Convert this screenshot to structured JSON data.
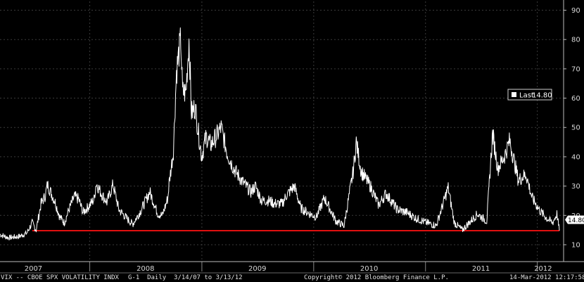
{
  "chart_data": {
    "type": "line",
    "title": "",
    "xlabel": "",
    "ylabel": "",
    "ylim": [
      4,
      93
    ],
    "xlim": [
      "2007-03-14",
      "2012-03-13"
    ],
    "grid": true,
    "y_ticks": [
      10,
      20,
      30,
      40,
      50,
      60,
      70,
      80,
      90
    ],
    "x_ticks": [
      "2007",
      "2008",
      "2009",
      "2010",
      "2011",
      "2012"
    ],
    "x_tick_dates": [
      "2007-07-01",
      "2008-07-01",
      "2009-07-01",
      "2010-07-01",
      "2011-07-01",
      "2012-01-20"
    ],
    "series": [
      {
        "name": "",
        "color": "#ffffff",
        "points": [
          [
            "2007-03-14",
            13.5
          ],
          [
            "2007-04-10",
            12.4
          ],
          [
            "2007-05-15",
            12.8
          ],
          [
            "2007-06-10",
            14.0
          ],
          [
            "2007-06-27",
            17.5
          ],
          [
            "2007-07-10",
            15.0
          ],
          [
            "2007-07-26",
            24.0
          ],
          [
            "2007-08-08",
            26.5
          ],
          [
            "2007-08-16",
            30.5
          ],
          [
            "2007-09-10",
            24.5
          ],
          [
            "2007-09-25",
            19.5
          ],
          [
            "2007-10-10",
            17.5
          ],
          [
            "2007-10-25",
            22.0
          ],
          [
            "2007-11-12",
            26.5
          ],
          [
            "2007-11-26",
            25.5
          ],
          [
            "2007-12-10",
            21.0
          ],
          [
            "2007-12-28",
            23.0
          ],
          [
            "2008-01-15",
            25.5
          ],
          [
            "2008-01-22",
            31.0
          ],
          [
            "2008-02-10",
            27.0
          ],
          [
            "2008-02-26",
            24.5
          ],
          [
            "2008-03-17",
            30.5
          ],
          [
            "2008-04-05",
            22.0
          ],
          [
            "2008-05-05",
            18.5
          ],
          [
            "2008-05-20",
            17.0
          ],
          [
            "2008-06-15",
            21.5
          ],
          [
            "2008-07-15",
            28.0
          ],
          [
            "2008-08-10",
            20.5
          ],
          [
            "2008-08-25",
            20.0
          ],
          [
            "2008-09-12",
            26.0
          ],
          [
            "2008-09-16",
            31.0
          ],
          [
            "2008-09-30",
            42.0
          ],
          [
            "2008-10-10",
            69.0
          ],
          [
            "2008-10-24",
            80.0
          ],
          [
            "2008-10-30",
            62.0
          ],
          [
            "2008-11-10",
            62.0
          ],
          [
            "2008-11-20",
            80.0
          ],
          [
            "2008-11-28",
            55.0
          ],
          [
            "2008-12-10",
            57.0
          ],
          [
            "2008-12-31",
            40.0
          ],
          [
            "2009-01-15",
            47.0
          ],
          [
            "2009-01-30",
            44.0
          ],
          [
            "2009-02-20",
            47.5
          ],
          [
            "2009-03-05",
            50.0
          ],
          [
            "2009-03-25",
            41.0
          ],
          [
            "2009-04-15",
            36.0
          ],
          [
            "2009-05-10",
            32.0
          ],
          [
            "2009-06-10",
            28.0
          ],
          [
            "2009-06-25",
            30.0
          ],
          [
            "2009-07-15",
            25.0
          ],
          [
            "2009-08-10",
            25.0
          ],
          [
            "2009-08-25",
            24.0
          ],
          [
            "2009-09-20",
            24.0
          ],
          [
            "2009-10-05",
            27.0
          ],
          [
            "2009-10-30",
            30.0
          ],
          [
            "2009-11-20",
            22.5
          ],
          [
            "2009-12-20",
            20.5
          ],
          [
            "2010-01-10",
            19.5
          ],
          [
            "2010-02-05",
            26.0
          ],
          [
            "2010-03-15",
            18.0
          ],
          [
            "2010-04-10",
            16.5
          ],
          [
            "2010-05-10",
            35.0
          ],
          [
            "2010-05-20",
            45.0
          ],
          [
            "2010-06-05",
            35.0
          ],
          [
            "2010-07-05",
            30.0
          ],
          [
            "2010-08-01",
            23.5
          ],
          [
            "2010-08-25",
            27.5
          ],
          [
            "2010-10-01",
            22.0
          ],
          [
            "2010-11-01",
            21.0
          ],
          [
            "2010-12-01",
            19.0
          ],
          [
            "2011-01-05",
            17.5
          ],
          [
            "2011-02-05",
            16.5
          ],
          [
            "2011-03-16",
            29.5
          ],
          [
            "2011-04-05",
            17.5
          ],
          [
            "2011-05-01",
            15.0
          ],
          [
            "2011-06-20",
            20.5
          ],
          [
            "2011-07-20",
            18.0
          ],
          [
            "2011-08-08",
            48.0
          ],
          [
            "2011-08-25",
            36.0
          ],
          [
            "2011-09-15",
            40.0
          ],
          [
            "2011-10-03",
            45.5
          ],
          [
            "2011-10-31",
            32.0
          ],
          [
            "2011-11-25",
            34.0
          ],
          [
            "2011-12-15",
            26.0
          ],
          [
            "2012-01-10",
            21.5
          ],
          [
            "2012-02-01",
            19.0
          ],
          [
            "2012-02-20",
            17.5
          ],
          [
            "2012-03-05",
            20.5
          ],
          [
            "2012-03-13",
            14.8
          ]
        ]
      }
    ],
    "reference_line": {
      "value": 14.8,
      "color": "#e01010"
    },
    "legend": {
      "position": "right",
      "label": "Last",
      "value": "14.80"
    },
    "last_value_tag": "14.80"
  },
  "footer": {
    "ticker": "VIX -- CBOE SPX VOLATILITY INDX",
    "settings": "G-1  Daily  3/14/07 to 3/13/12",
    "copyright": "Copyright© 2012 Bloomberg Finance L.P.",
    "timestamp": "14-Mar-2012 12:17:58"
  },
  "colors": {
    "background": "#000000",
    "grid": "#3a3a3a",
    "line": "#ffffff",
    "reference": "#e01010",
    "text": "#d8d8d8"
  }
}
